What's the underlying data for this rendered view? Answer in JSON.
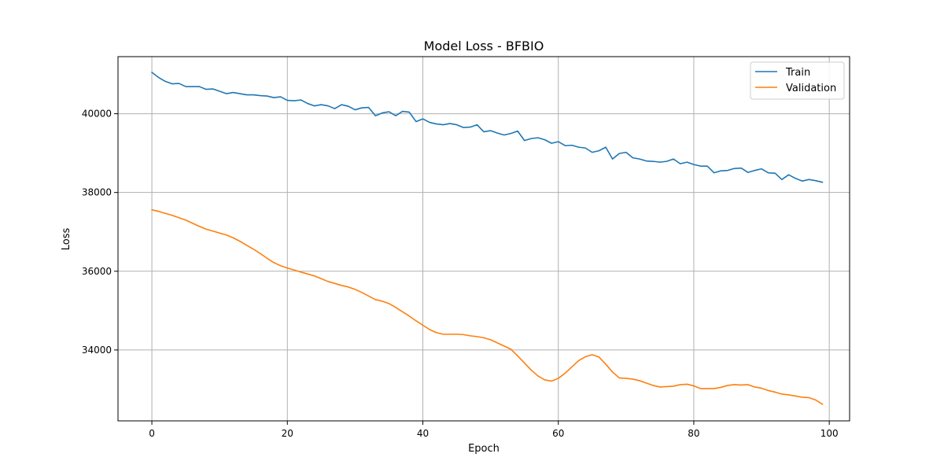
{
  "chart_data": {
    "type": "line",
    "title": "Model Loss - BFBIO",
    "xlabel": "Epoch",
    "ylabel": "Loss",
    "xlim": [
      -5,
      103
    ],
    "ylim": [
      32200,
      41450
    ],
    "xticks": [
      0,
      20,
      40,
      60,
      80,
      100
    ],
    "yticks": [
      34000,
      36000,
      38000,
      40000
    ],
    "grid": true,
    "legend_position": "top-right",
    "series": [
      {
        "name": "Train",
        "color": "#1f77b4",
        "x": [
          0,
          1,
          2,
          3,
          4,
          5,
          6,
          7,
          8,
          9,
          10,
          11,
          12,
          13,
          14,
          15,
          16,
          17,
          18,
          19,
          20,
          21,
          22,
          23,
          24,
          25,
          26,
          27,
          28,
          29,
          30,
          31,
          32,
          33,
          34,
          35,
          36,
          37,
          38,
          39,
          40,
          41,
          42,
          43,
          44,
          45,
          46,
          47,
          48,
          49,
          50,
          51,
          52,
          53,
          54,
          55,
          56,
          57,
          58,
          59,
          60,
          61,
          62,
          63,
          64,
          65,
          66,
          67,
          68,
          69,
          70,
          71,
          72,
          73,
          74,
          75,
          76,
          77,
          78,
          79,
          80,
          81,
          82,
          83,
          84,
          85,
          86,
          87,
          88,
          89,
          90,
          91,
          92,
          93,
          94,
          95,
          96,
          97,
          98,
          99
        ],
        "values": [
          41050,
          40920,
          40820,
          40760,
          40770,
          40690,
          40690,
          40690,
          40620,
          40630,
          40570,
          40510,
          40540,
          40510,
          40480,
          40480,
          40460,
          40450,
          40410,
          40430,
          40340,
          40330,
          40350,
          40260,
          40200,
          40230,
          40200,
          40130,
          40230,
          40190,
          40100,
          40150,
          40160,
          39950,
          40020,
          40050,
          39950,
          40060,
          40040,
          39800,
          39870,
          39780,
          39740,
          39720,
          39750,
          39720,
          39650,
          39660,
          39720,
          39540,
          39570,
          39510,
          39460,
          39500,
          39560,
          39320,
          39370,
          39390,
          39340,
          39250,
          39290,
          39190,
          39200,
          39150,
          39130,
          39020,
          39060,
          39150,
          38850,
          38990,
          39020,
          38880,
          38850,
          38800,
          38790,
          38770,
          38790,
          38850,
          38730,
          38770,
          38710,
          38670,
          38670,
          38500,
          38550,
          38560,
          38610,
          38620,
          38510,
          38560,
          38600,
          38500,
          38490,
          38330,
          38450,
          38360,
          38290,
          38330,
          38300,
          38260
        ]
      },
      {
        "name": "Validation",
        "color": "#ff7f0e",
        "x": [
          0,
          1,
          2,
          3,
          4,
          5,
          6,
          7,
          8,
          9,
          10,
          11,
          12,
          13,
          14,
          15,
          16,
          17,
          18,
          19,
          20,
          21,
          22,
          23,
          24,
          25,
          26,
          27,
          28,
          29,
          30,
          31,
          32,
          33,
          34,
          35,
          36,
          37,
          38,
          39,
          40,
          41,
          42,
          43,
          44,
          45,
          46,
          47,
          48,
          49,
          50,
          51,
          52,
          53,
          54,
          55,
          56,
          57,
          58,
          59,
          60,
          61,
          62,
          63,
          64,
          65,
          66,
          67,
          68,
          69,
          70,
          71,
          72,
          73,
          74,
          75,
          76,
          77,
          78,
          79,
          80,
          81,
          82,
          83,
          84,
          85,
          86,
          87,
          88,
          89,
          90,
          91,
          92,
          93,
          94,
          95,
          96,
          97,
          98,
          99
        ],
        "values": [
          37560,
          37520,
          37470,
          37420,
          37360,
          37300,
          37220,
          37140,
          37070,
          37020,
          36970,
          36920,
          36850,
          36760,
          36660,
          36560,
          36450,
          36330,
          36220,
          36140,
          36080,
          36030,
          35980,
          35930,
          35880,
          35810,
          35740,
          35690,
          35640,
          35600,
          35540,
          35460,
          35370,
          35280,
          35240,
          35180,
          35080,
          34970,
          34860,
          34740,
          34630,
          34520,
          34440,
          34400,
          34400,
          34400,
          34390,
          34360,
          34340,
          34310,
          34260,
          34180,
          34100,
          34020,
          33850,
          33670,
          33490,
          33340,
          33240,
          33210,
          33280,
          33410,
          33570,
          33730,
          33830,
          33880,
          33820,
          33640,
          33440,
          33290,
          33280,
          33260,
          33220,
          33160,
          33100,
          33060,
          33070,
          33080,
          33120,
          33130,
          33090,
          33020,
          33020,
          33020,
          33050,
          33100,
          33120,
          33110,
          33120,
          33060,
          33030,
          32970,
          32930,
          32880,
          32860,
          32830,
          32800,
          32790,
          32730,
          32620
        ]
      }
    ]
  }
}
